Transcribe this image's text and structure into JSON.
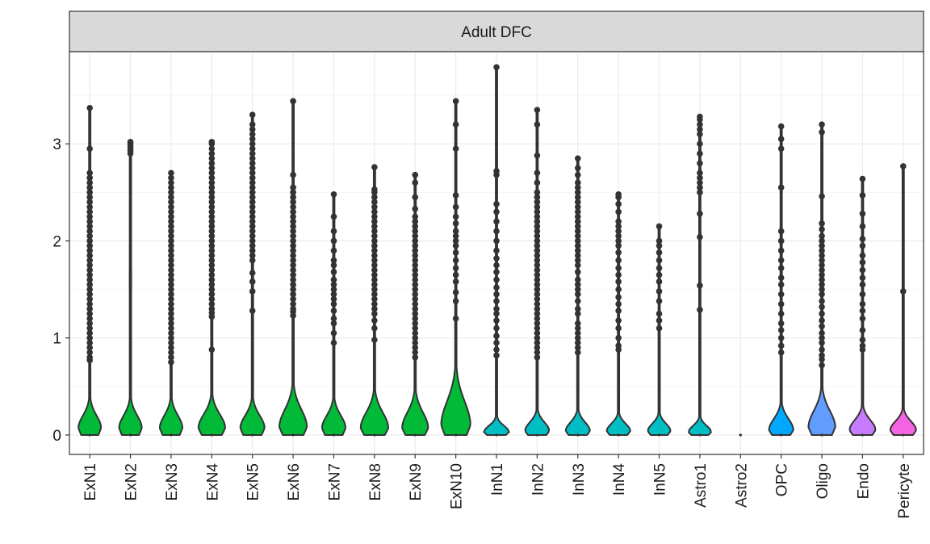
{
  "chart_data": {
    "type": "violin",
    "facet_title": "Adult DFC",
    "xlabel": "",
    "ylabel": "",
    "ylim": [
      -0.2,
      3.95
    ],
    "yticks": [
      0,
      1,
      2,
      3
    ],
    "grid": true,
    "categories": [
      {
        "label": "ExN1",
        "color": "#00BA38",
        "max_density_width": 0.28,
        "peak": 0.07,
        "spread": 0.2,
        "outliers": [
          0.77,
          0.8,
          0.85,
          0.9,
          0.95,
          1.0,
          1.05,
          1.1,
          1.15,
          1.2,
          1.25,
          1.3,
          1.35,
          1.4,
          1.45,
          1.5,
          1.55,
          1.6,
          1.65,
          1.7,
          1.75,
          1.8,
          1.85,
          1.9,
          1.95,
          2.0,
          2.05,
          2.1,
          2.15,
          2.2,
          2.25,
          2.3,
          2.35,
          2.4,
          2.45,
          2.5,
          2.55,
          2.6,
          2.65,
          2.7,
          2.95,
          3.37
        ]
      },
      {
        "label": "ExN2",
        "color": "#00BA38",
        "max_density_width": 0.28,
        "peak": 0.07,
        "spread": 0.2,
        "outliers": [
          2.9,
          2.93,
          2.95,
          2.97,
          3.0,
          3.02
        ],
        "bulge_center": 1.6,
        "bulge_width": 0.02
      },
      {
        "label": "ExN3",
        "color": "#00BA38",
        "max_density_width": 0.28,
        "peak": 0.07,
        "spread": 0.2,
        "outliers": [
          0.75,
          0.8,
          0.85,
          0.9,
          0.95,
          1.0,
          1.05,
          1.1,
          1.15,
          1.2,
          1.25,
          1.3,
          1.35,
          1.4,
          1.45,
          1.5,
          1.55,
          1.6,
          1.65,
          1.7,
          1.75,
          1.8,
          1.85,
          1.9,
          1.95,
          2.0,
          2.05,
          2.1,
          2.15,
          2.2,
          2.25,
          2.3,
          2.35,
          2.4,
          2.45,
          2.5,
          2.55,
          2.6,
          2.65,
          2.7
        ]
      },
      {
        "label": "ExN4",
        "color": "#00BA38",
        "max_density_width": 0.33,
        "peak": 0.07,
        "spread": 0.22,
        "outliers": [
          0.88,
          1.22,
          1.26,
          1.3,
          1.35,
          1.4,
          1.45,
          1.5,
          1.55,
          1.6,
          1.65,
          1.7,
          1.75,
          1.8,
          1.85,
          1.9,
          1.95,
          2.0,
          2.05,
          2.1,
          2.15,
          2.2,
          2.25,
          2.3,
          2.35,
          2.4,
          2.45,
          2.5,
          2.55,
          2.6,
          2.65,
          2.7,
          2.75,
          2.8,
          2.85,
          2.9,
          2.95,
          3.0,
          3.02
        ]
      },
      {
        "label": "ExN5",
        "color": "#00BA38",
        "max_density_width": 0.3,
        "peak": 0.07,
        "spread": 0.2,
        "outliers": [
          1.28,
          1.48,
          1.58,
          1.67,
          1.8,
          1.85,
          1.9,
          1.95,
          2.0,
          2.05,
          2.1,
          2.15,
          2.2,
          2.25,
          2.3,
          2.35,
          2.4,
          2.45,
          2.5,
          2.55,
          2.6,
          2.65,
          2.7,
          2.75,
          2.8,
          2.85,
          2.9,
          2.95,
          3.0,
          3.05,
          3.1,
          3.15,
          3.2,
          3.3
        ]
      },
      {
        "label": "ExN6",
        "color": "#00BA38",
        "max_density_width": 0.34,
        "peak": 0.08,
        "spread": 0.28,
        "outliers": [
          1.23,
          1.27,
          1.3,
          1.35,
          1.4,
          1.45,
          1.5,
          1.55,
          1.6,
          1.65,
          1.7,
          1.75,
          1.8,
          1.85,
          1.9,
          1.95,
          2.0,
          2.05,
          2.1,
          2.15,
          2.2,
          2.25,
          2.3,
          2.35,
          2.4,
          2.45,
          2.5,
          2.55,
          2.68,
          3.44
        ]
      },
      {
        "label": "ExN7",
        "color": "#00BA38",
        "max_density_width": 0.29,
        "peak": 0.07,
        "spread": 0.2,
        "outliers": [
          0.95,
          1.05,
          1.15,
          1.2,
          1.28,
          1.35,
          1.4,
          1.45,
          1.5,
          1.55,
          1.6,
          1.68,
          1.75,
          1.8,
          1.9,
          2.0,
          2.1,
          2.25,
          2.48
        ]
      },
      {
        "label": "ExN8",
        "color": "#00BA38",
        "max_density_width": 0.34,
        "peak": 0.07,
        "spread": 0.25,
        "outliers": [
          0.98,
          1.1,
          1.18,
          1.25,
          1.3,
          1.35,
          1.4,
          1.45,
          1.5,
          1.55,
          1.6,
          1.65,
          1.7,
          1.75,
          1.8,
          1.85,
          1.9,
          1.95,
          2.0,
          2.05,
          2.1,
          2.15,
          2.2,
          2.25,
          2.3,
          2.35,
          2.4,
          2.45,
          2.5,
          2.53,
          2.76
        ]
      },
      {
        "label": "ExN9",
        "color": "#00BA38",
        "max_density_width": 0.32,
        "peak": 0.07,
        "spread": 0.25,
        "outliers": [
          0.8,
          0.85,
          0.9,
          0.95,
          1.0,
          1.05,
          1.1,
          1.15,
          1.2,
          1.25,
          1.3,
          1.35,
          1.4,
          1.45,
          1.5,
          1.55,
          1.6,
          1.65,
          1.7,
          1.75,
          1.8,
          1.85,
          1.9,
          1.95,
          2.0,
          2.05,
          2.1,
          2.15,
          2.2,
          2.25,
          2.33,
          2.45,
          2.6,
          2.68
        ]
      },
      {
        "label": "ExN10",
        "color": "#00BA38",
        "max_density_width": 0.36,
        "peak": 0.1,
        "spread": 0.38,
        "outliers": [
          1.2,
          1.38,
          1.47,
          1.58,
          1.65,
          1.72,
          1.8,
          1.88,
          1.95,
          2.0,
          2.05,
          2.1,
          2.18,
          2.25,
          2.35,
          2.47,
          2.95,
          3.2,
          3.44
        ]
      },
      {
        "label": "InN1",
        "color": "#00BFC4",
        "max_density_width": 0.31,
        "peak": 0.03,
        "spread": 0.1,
        "outliers": [
          0.82,
          0.88,
          0.95,
          1.02,
          1.1,
          1.18,
          1.25,
          1.3,
          1.38,
          1.45,
          1.52,
          1.6,
          1.68,
          1.75,
          1.82,
          1.9,
          2.0,
          2.1,
          2.2,
          2.3,
          2.38,
          2.68,
          2.72,
          3.79
        ]
      },
      {
        "label": "InN2",
        "color": "#00BFC4",
        "max_density_width": 0.3,
        "peak": 0.04,
        "spread": 0.14,
        "outliers": [
          0.8,
          0.85,
          0.9,
          0.95,
          1.0,
          1.05,
          1.1,
          1.15,
          1.2,
          1.25,
          1.3,
          1.35,
          1.4,
          1.45,
          1.5,
          1.55,
          1.6,
          1.65,
          1.7,
          1.75,
          1.8,
          1.85,
          1.9,
          1.95,
          2.0,
          2.05,
          2.1,
          2.15,
          2.2,
          2.25,
          2.3,
          2.35,
          2.4,
          2.45,
          2.5,
          2.6,
          2.7,
          2.88,
          3.2,
          3.35
        ]
      },
      {
        "label": "InN3",
        "color": "#00BFC4",
        "max_density_width": 0.3,
        "peak": 0.04,
        "spread": 0.14,
        "outliers": [
          0.85,
          0.9,
          0.95,
          1.0,
          1.05,
          1.1,
          1.15,
          1.25,
          1.3,
          1.38,
          1.45,
          1.5,
          1.55,
          1.6,
          1.68,
          1.75,
          1.8,
          1.85,
          1.9,
          1.95,
          2.0,
          2.05,
          2.1,
          2.15,
          2.2,
          2.25,
          2.3,
          2.35,
          2.4,
          2.45,
          2.5,
          2.55,
          2.6,
          2.68,
          2.75,
          2.85
        ]
      },
      {
        "label": "InN4",
        "color": "#00BFC4",
        "max_density_width": 0.29,
        "peak": 0.04,
        "spread": 0.12,
        "outliers": [
          0.88,
          0.92,
          1.0,
          1.1,
          1.18,
          1.28,
          1.35,
          1.42,
          1.5,
          1.58,
          1.65,
          1.72,
          1.8,
          1.88,
          1.95,
          2.0,
          2.05,
          2.1,
          2.15,
          2.2,
          2.3,
          2.38,
          2.45,
          2.48
        ]
      },
      {
        "label": "InN5",
        "color": "#00BFC4",
        "max_density_width": 0.28,
        "peak": 0.04,
        "spread": 0.12,
        "outliers": [
          1.1,
          1.18,
          1.25,
          1.38,
          1.48,
          1.58,
          1.65,
          1.72,
          1.8,
          1.88,
          1.95,
          2.0,
          2.15
        ]
      },
      {
        "label": "Astro1",
        "color": "#00BFC4",
        "max_density_width": 0.28,
        "peak": 0.03,
        "spread": 0.1,
        "outliers": [
          1.29,
          1.54,
          2.04,
          2.28,
          2.5,
          2.55,
          2.6,
          2.65,
          2.7,
          2.8,
          2.9,
          3.0,
          3.1,
          3.15,
          3.2,
          3.25,
          3.28
        ]
      },
      {
        "label": "Astro2",
        "color": "#00BFC4",
        "max_density_width": 0.0,
        "peak": 0.0,
        "spread": 0.05,
        "outliers": []
      },
      {
        "label": "OPC",
        "color": "#00A9FF",
        "max_density_width": 0.3,
        "peak": 0.05,
        "spread": 0.18,
        "outliers": [
          0.85,
          0.92,
          1.0,
          1.08,
          1.15,
          1.25,
          1.35,
          1.45,
          1.55,
          1.62,
          1.72,
          1.8,
          1.9,
          2.0,
          2.1,
          2.55,
          2.95,
          3.05,
          3.18
        ]
      },
      {
        "label": "Oligo",
        "color": "#619CFF",
        "max_density_width": 0.33,
        "peak": 0.08,
        "spread": 0.26,
        "outliers": [
          0.72,
          0.78,
          0.82,
          0.88,
          0.95,
          1.0,
          1.05,
          1.12,
          1.18,
          1.25,
          1.32,
          1.38,
          1.45,
          1.5,
          1.55,
          1.6,
          1.65,
          1.7,
          1.75,
          1.8,
          1.85,
          1.9,
          1.95,
          2.0,
          2.05,
          2.12,
          2.18,
          2.46,
          3.12,
          3.2
        ]
      },
      {
        "label": "Endo",
        "color": "#C77CFF",
        "max_density_width": 0.32,
        "peak": 0.05,
        "spread": 0.16,
        "outliers": [
          0.88,
          0.92,
          0.98,
          1.08,
          1.2,
          1.28,
          1.35,
          1.45,
          1.55,
          1.62,
          1.7,
          1.78,
          1.85,
          1.95,
          2.02,
          2.15,
          2.28,
          2.47,
          2.64
        ]
      },
      {
        "label": "Pericyte",
        "color": "#F564E3",
        "max_density_width": 0.32,
        "peak": 0.05,
        "spread": 0.14,
        "outliers": [
          1.48,
          2.77
        ]
      }
    ]
  }
}
